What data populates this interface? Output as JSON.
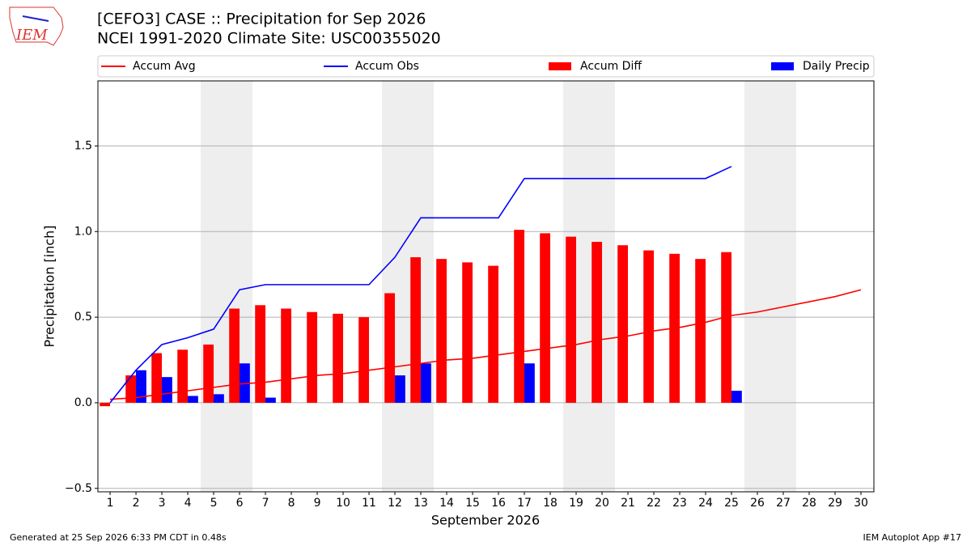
{
  "chart_data": {
    "type": "bar",
    "logo": "IEM",
    "title": "[CEFO3] CASE :: Precipitation for Sep 2026",
    "subtitle": "NCEI 1991-2020 Climate Site: USC00355020",
    "xlabel": "September 2026",
    "ylabel": "Precipitation [inch]",
    "footer_left": "Generated at 25 Sep 2026 6:33 PM CDT in 0.48s",
    "footer_right": "IEM Autoplot App #17",
    "x": [
      1,
      2,
      3,
      4,
      5,
      6,
      7,
      8,
      9,
      10,
      11,
      12,
      13,
      14,
      15,
      16,
      17,
      18,
      19,
      20,
      21,
      22,
      23,
      24,
      25,
      26,
      27,
      28,
      29,
      30
    ],
    "xlim": [
      0.53,
      30.5
    ],
    "xticks": [
      1,
      2,
      3,
      4,
      5,
      6,
      7,
      8,
      9,
      10,
      11,
      12,
      13,
      14,
      15,
      16,
      17,
      18,
      19,
      20,
      21,
      22,
      23,
      24,
      25,
      26,
      27,
      28,
      29,
      30
    ],
    "ylim": [
      -0.52,
      1.88
    ],
    "yticks": [
      {
        "value": -0.5,
        "label": "−0.5"
      },
      {
        "value": 0,
        "label": "0.0"
      },
      0.5,
      {
        "value": 1,
        "label": "1.0"
      },
      1.5
    ],
    "grid": true,
    "shaded_x": [
      [
        4.5,
        6.5
      ],
      [
        11.5,
        13.5
      ],
      [
        18.5,
        20.5
      ],
      [
        25.5,
        27.5
      ]
    ],
    "shade_color": "#eeeeee",
    "series": [
      {
        "name": "Accum Avg",
        "type": "line",
        "color": "#ff0000",
        "values": [
          0.02,
          0.03,
          0.05,
          0.07,
          0.09,
          0.11,
          0.12,
          0.14,
          0.16,
          0.17,
          0.19,
          0.21,
          0.23,
          0.25,
          0.26,
          0.28,
          0.3,
          0.32,
          0.34,
          0.37,
          0.39,
          0.42,
          0.44,
          0.47,
          0.51,
          0.53,
          0.56,
          0.59,
          0.62,
          0.66
        ]
      },
      {
        "name": "Accum Obs",
        "type": "line",
        "color": "#0000ff",
        "values": [
          0.0,
          0.19,
          0.34,
          0.38,
          0.43,
          0.66,
          0.69,
          0.69,
          0.69,
          0.69,
          0.69,
          0.85,
          1.08,
          1.08,
          1.08,
          1.08,
          1.31,
          1.31,
          1.31,
          1.31,
          1.31,
          1.31,
          1.31,
          1.31,
          1.38,
          null,
          null,
          null,
          null,
          null
        ]
      },
      {
        "name": "Accum Diff",
        "type": "bar",
        "offset": -0.2,
        "width": 0.4,
        "color": "#ff0000",
        "values": [
          -0.02,
          0.16,
          0.29,
          0.31,
          0.34,
          0.55,
          0.57,
          0.55,
          0.53,
          0.52,
          0.5,
          0.64,
          0.85,
          0.84,
          0.82,
          0.8,
          1.01,
          0.99,
          0.97,
          0.94,
          0.92,
          0.89,
          0.87,
          0.84,
          0.88,
          null,
          null,
          null,
          null,
          null
        ]
      },
      {
        "name": "Daily Precip",
        "type": "bar",
        "offset": 0.2,
        "width": 0.4,
        "color": "#0000ff",
        "values": [
          0,
          0.19,
          0.15,
          0.04,
          0.05,
          0.23,
          0.03,
          0,
          0,
          0,
          0,
          0.16,
          0.23,
          0,
          0,
          0,
          0.23,
          0,
          0,
          0,
          0,
          0,
          0,
          0,
          0.07,
          null,
          null,
          null,
          null,
          null
        ]
      }
    ]
  }
}
